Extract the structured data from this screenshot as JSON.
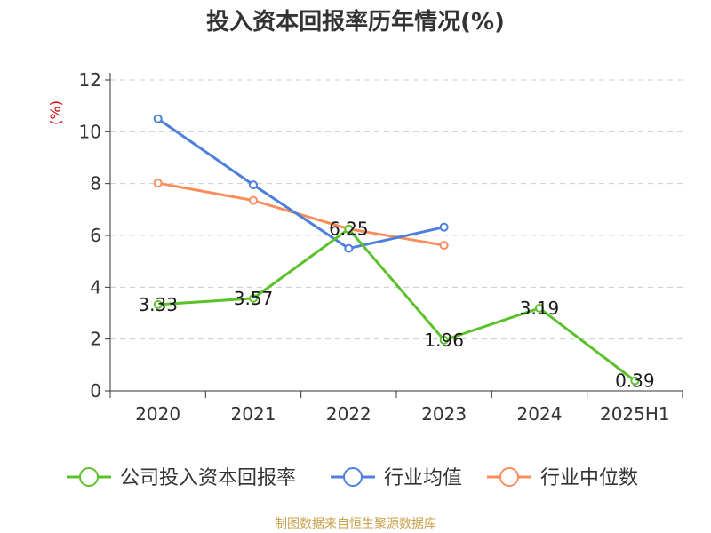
{
  "chart_data": {
    "type": "line",
    "title": "投入资本回报率历年情况(%)",
    "y_unit_label": "(%)",
    "categories": [
      "2020",
      "2021",
      "2022",
      "2023",
      "2024",
      "2025H1"
    ],
    "ylim": [
      0,
      12
    ],
    "yticks": [
      "0",
      "2",
      "4",
      "6",
      "8",
      "10",
      "12"
    ],
    "grid": true,
    "legend_position": "bottom",
    "series": [
      {
        "name": "公司投入资本回报率",
        "color": "#5cc12a",
        "values": [
          3.33,
          3.57,
          6.25,
          1.96,
          3.19,
          0.39
        ],
        "labels": [
          "3.33",
          "3.57",
          "6.25",
          "1.96",
          "3.19",
          "0.39"
        ],
        "width": 3
      },
      {
        "name": "行业均值",
        "color": "#4d7fdc",
        "values": [
          10.5,
          7.95,
          5.5,
          6.32,
          null,
          null
        ],
        "width": 3
      },
      {
        "name": "行业中位数",
        "color": "#f98d5c",
        "values": [
          8.02,
          7.35,
          6.25,
          5.62,
          null,
          null
        ],
        "width": 3
      }
    ],
    "source": "制图数据来自恒生聚源数据库"
  }
}
